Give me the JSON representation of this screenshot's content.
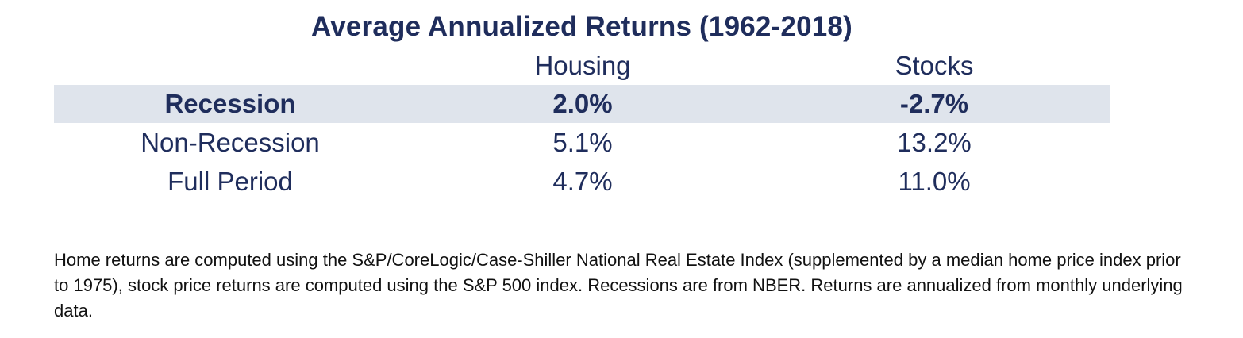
{
  "chart_data": {
    "type": "table",
    "title": "Average Annualized Returns (1962-2018)",
    "columns": [
      "Housing",
      "Stocks"
    ],
    "rows": [
      {
        "label": "Recession",
        "values": [
          "2.0%",
          "-2.7%"
        ],
        "highlighted": true
      },
      {
        "label": "Non-Recession",
        "values": [
          "5.1%",
          "13.2%"
        ],
        "highlighted": false
      },
      {
        "label": "Full Period",
        "values": [
          "4.7%",
          "11.0%"
        ],
        "highlighted": false
      }
    ],
    "highlight_color": "#dfe4ec",
    "text_color": "#1f2d5c"
  },
  "footnote": "Home returns are computed using the S&P/CoreLogic/Case-Shiller National Real Estate Index (supplemented by a median home price index prior to 1975), stock price returns are computed using the S&P 500 index. Recessions are from NBER. Returns are annualized from monthly underlying data."
}
